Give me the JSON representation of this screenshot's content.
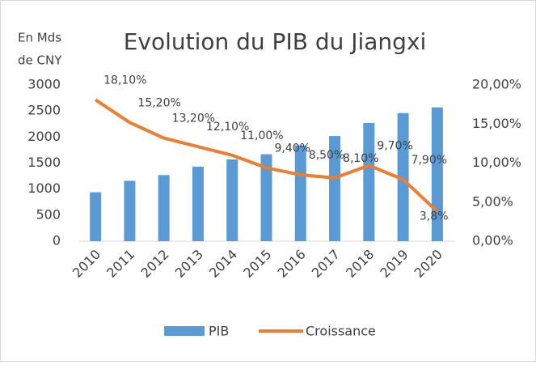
{
  "chart_data": {
    "type": "bar_line",
    "title": "Evolution du PIB du Jiangxi",
    "y_label": [
      "En Mds",
      "de CNY"
    ],
    "categories": [
      "2010",
      "2011",
      "2012",
      "2013",
      "2014",
      "2015",
      "2016",
      "2017",
      "2018",
      "2019",
      "2020"
    ],
    "series": [
      {
        "name": "PIB",
        "type": "bar",
        "color": "#5b9bd5",
        "axis": "y",
        "values": [
          940,
          1160,
          1270,
          1430,
          1570,
          1670,
          1840,
          2020,
          2270,
          2460,
          2570
        ]
      },
      {
        "name": "Croissance",
        "type": "line",
        "color": "#ed7d31",
        "axis": "y2",
        "values": [
          18.1,
          15.2,
          13.2,
          12.1,
          11.0,
          9.4,
          8.5,
          8.1,
          9.7,
          7.9,
          3.8
        ],
        "value_labels": [
          "18,10%",
          "15,20%",
          "13,20%",
          "12,10%",
          "11,00%",
          "9,40%",
          "8,50%",
          "8,10%",
          "9,70%",
          "7,90%",
          "3,8%"
        ]
      }
    ],
    "ylim": [
      0,
      3000
    ],
    "yticks": [
      0,
      500,
      1000,
      1500,
      2000,
      2500,
      3000
    ],
    "y2lim": [
      0,
      20
    ],
    "y2ticks": [
      {
        "value": 0,
        "label": "0,00%"
      },
      {
        "value": 5,
        "label": "5,00%"
      },
      {
        "value": 10,
        "label": "10,00%"
      },
      {
        "value": 15,
        "label": "15,00%"
      },
      {
        "value": 20,
        "label": "20,00%"
      }
    ],
    "grid": false,
    "legend": "bottom"
  }
}
